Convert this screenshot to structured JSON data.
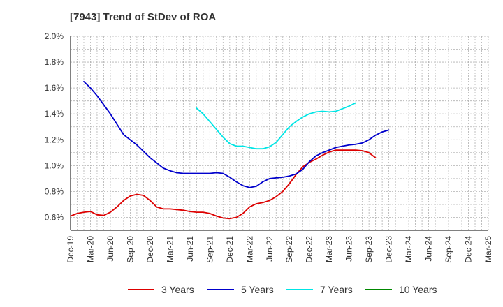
{
  "chart_data": {
    "type": "line",
    "title": "[7943]  Trend of StDev of ROA",
    "xlabel": "",
    "ylabel": "",
    "ylim": [
      0.5,
      2.0
    ],
    "y_ticks": [
      "0.6%",
      "0.8%",
      "1.0%",
      "1.2%",
      "1.4%",
      "1.6%",
      "1.8%",
      "2.0%"
    ],
    "x_ticks": [
      "Dec-19",
      "Mar-20",
      "Jun-20",
      "Sep-20",
      "Dec-20",
      "Mar-21",
      "Jun-21",
      "Sep-21",
      "Dec-21",
      "Mar-22",
      "Jun-22",
      "Sep-22",
      "Dec-22",
      "Mar-23",
      "Jun-23",
      "Sep-23",
      "Dec-23",
      "Mar-24",
      "Jun-24",
      "Sep-24",
      "Dec-24",
      "Mar-25"
    ],
    "grid": true,
    "legend_position": "bottom",
    "series": [
      {
        "name": "3 Years",
        "color": "#dd0000",
        "values": [
          0.61,
          0.63,
          0.64,
          0.645,
          0.62,
          0.615,
          0.64,
          0.68,
          0.73,
          0.765,
          0.778,
          0.77,
          0.73,
          0.68,
          0.665,
          0.665,
          0.66,
          0.655,
          0.645,
          0.64,
          0.64,
          0.63,
          0.61,
          0.595,
          0.59,
          0.6,
          0.63,
          0.68,
          0.705,
          0.715,
          0.73,
          0.76,
          0.8,
          0.86,
          0.93,
          0.99,
          1.025,
          1.05,
          1.08,
          1.105,
          1.12,
          1.12,
          1.12,
          1.12,
          1.115,
          1.1,
          1.06
        ]
      },
      {
        "name": "5 Years",
        "color": "#0000cc",
        "values": [
          null,
          null,
          1.65,
          1.6,
          1.54,
          1.47,
          1.4,
          1.32,
          1.24,
          1.2,
          1.16,
          1.11,
          1.06,
          1.02,
          0.98,
          0.96,
          0.945,
          0.94,
          0.94,
          0.94,
          0.94,
          0.94,
          0.945,
          0.94,
          0.91,
          0.875,
          0.845,
          0.83,
          0.84,
          0.875,
          0.9,
          0.905,
          0.91,
          0.92,
          0.935,
          0.97,
          1.03,
          1.075,
          1.1,
          1.12,
          1.14,
          1.15,
          1.16,
          1.165,
          1.175,
          1.2,
          1.235,
          1.26,
          1.275
        ]
      },
      {
        "name": "7 Years",
        "color": "#00e5e5",
        "values": [
          null,
          null,
          null,
          null,
          null,
          null,
          null,
          null,
          null,
          null,
          null,
          null,
          null,
          null,
          null,
          null,
          null,
          null,
          null,
          1.445,
          1.4,
          1.34,
          1.28,
          1.22,
          1.17,
          1.15,
          1.15,
          1.14,
          1.13,
          1.13,
          1.145,
          1.18,
          1.24,
          1.3,
          1.34,
          1.375,
          1.4,
          1.415,
          1.42,
          1.415,
          1.42,
          1.44,
          1.46,
          1.485
        ]
      },
      {
        "name": "10 Years",
        "color": "#008800",
        "values": []
      }
    ]
  }
}
